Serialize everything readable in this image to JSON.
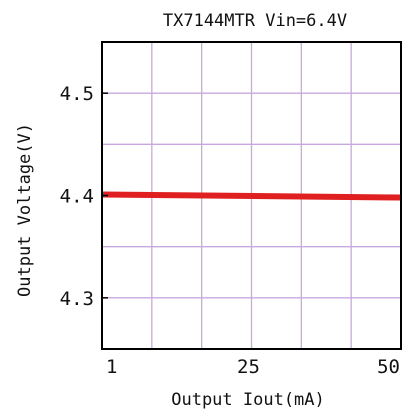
{
  "chart_data": {
    "type": "line",
    "title": "TX7144MTR Vin=6.4V",
    "xlabel": "Output Iout(mA)",
    "ylabel": "Output Voltage(V)",
    "xlim": [
      1,
      50
    ],
    "ylim": [
      4.25,
      4.55
    ],
    "x_ticks": [
      1,
      25,
      50
    ],
    "x_tick_labels": [
      "1",
      "25",
      "50"
    ],
    "y_ticks": [
      4.3,
      4.4,
      4.5
    ],
    "y_tick_labels": [
      "4.3",
      "4.4",
      "4.5"
    ],
    "grid": true,
    "grid_color": "#c9a8e0",
    "line_color": "#e02020",
    "series": [
      {
        "x": [
          1,
          50
        ],
        "y": [
          4.401,
          4.398
        ]
      }
    ]
  }
}
